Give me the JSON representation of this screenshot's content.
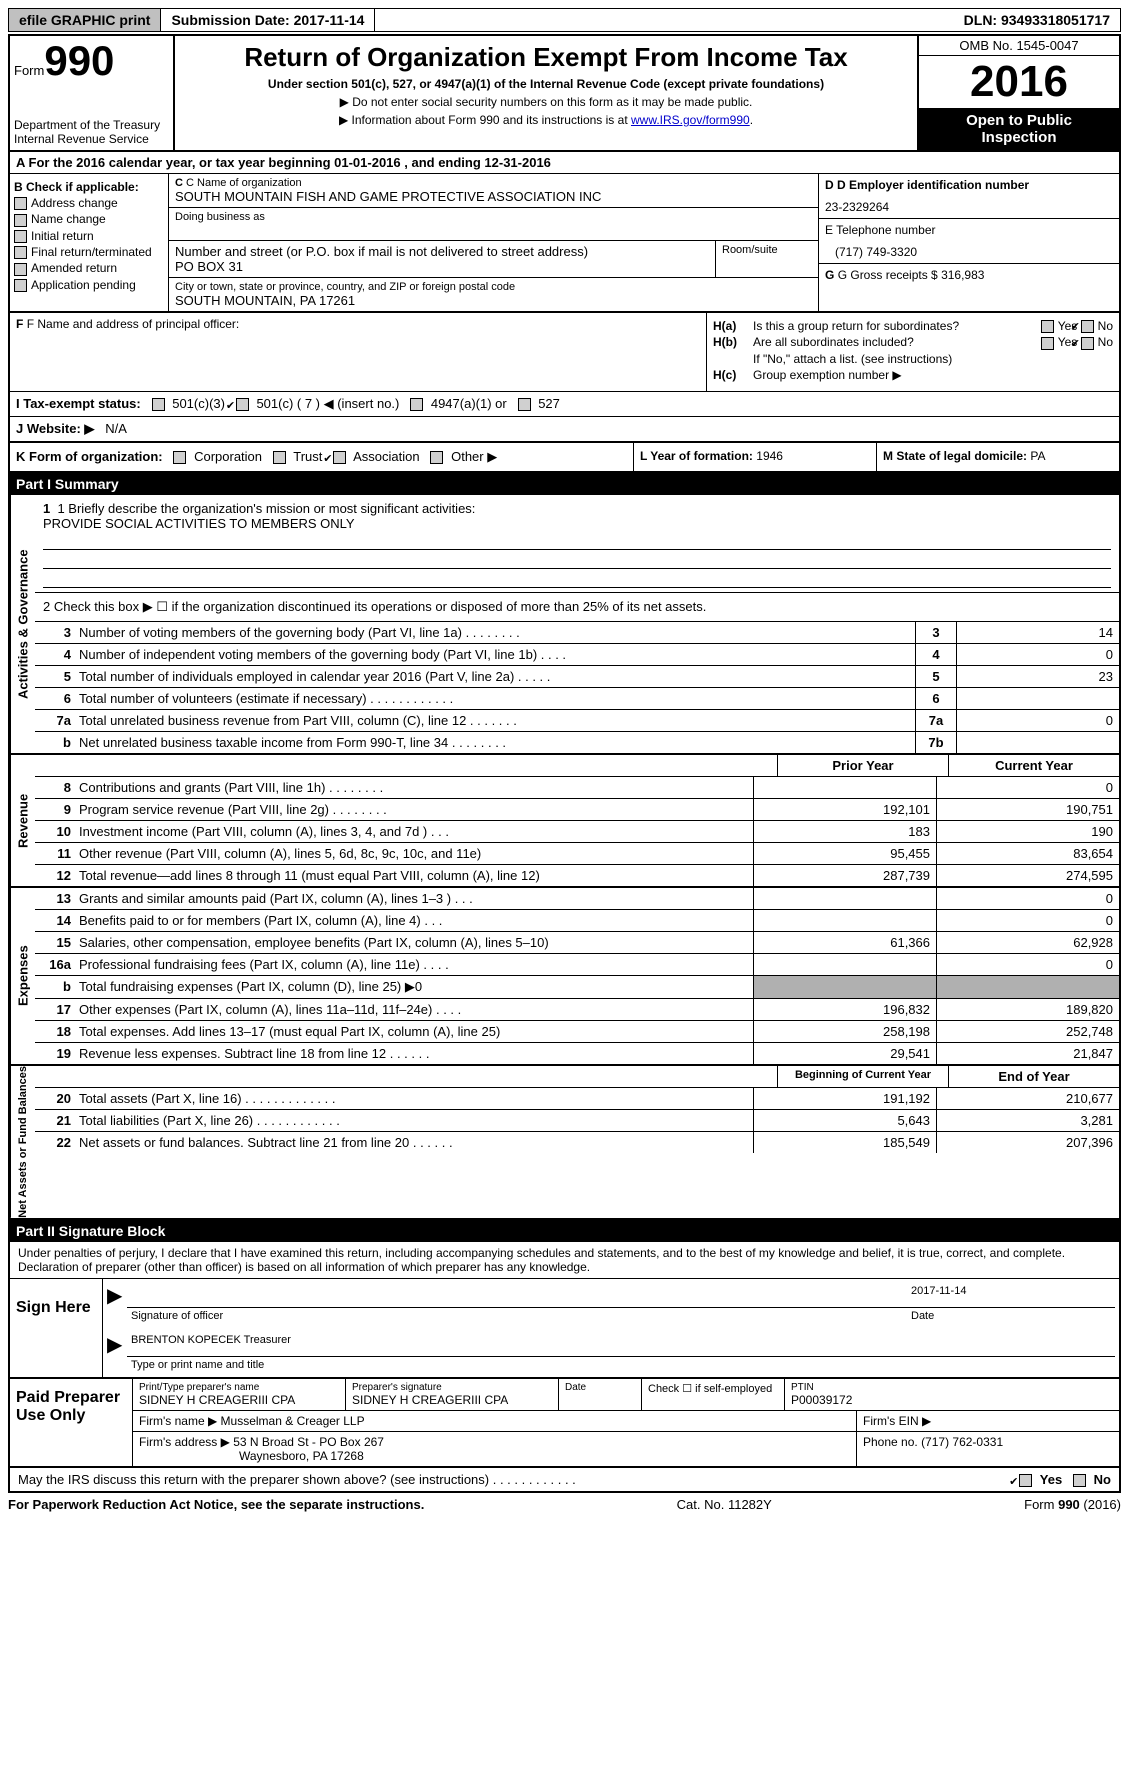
{
  "topbar": {
    "efile": "efile GRAPHIC print",
    "sub_label": "Submission Date: 2017-11-14",
    "dln": "DLN: 93493318051717"
  },
  "header": {
    "form_word": "Form",
    "form_num": "990",
    "dept1": "Department of the Treasury",
    "dept2": "Internal Revenue Service",
    "title": "Return of Organization Exempt From Income Tax",
    "subtitle": "Under section 501(c), 527, or 4947(a)(1) of the Internal Revenue Code (except private foundations)",
    "arrow1": "▶ Do not enter social security numbers on this form as it may be made public.",
    "arrow2_pre": "▶ Information about Form 990 and its instructions is at ",
    "arrow2_link": "www.IRS.gov/form990",
    "omb": "OMB No. 1545-0047",
    "year": "2016",
    "otp1": "Open to Public",
    "otp2": "Inspection"
  },
  "row_a": "A  For the 2016 calendar year, or tax year beginning 01-01-2016   , and ending 12-31-2016",
  "col_b": {
    "title": "B Check if applicable:",
    "opts": [
      "Address change",
      "Name change",
      "Initial return",
      "Final return/terminated",
      "Amended return",
      "Application pending"
    ]
  },
  "col_c": {
    "name_lbl": "C Name of organization",
    "name": "SOUTH MOUNTAIN FISH AND GAME PROTECTIVE ASSOCIATION INC",
    "dba_lbl": "Doing business as",
    "street_lbl": "Number and street (or P.O. box if mail is not delivered to street address)",
    "street": "PO BOX 31",
    "room_lbl": "Room/suite",
    "city_lbl": "City or town, state or province, country, and ZIP or foreign postal code",
    "city": "SOUTH MOUNTAIN, PA  17261"
  },
  "col_d": {
    "ein_lbl": "D Employer identification number",
    "ein": "23-2329264",
    "tel_lbl": "E Telephone number",
    "tel": "(717) 749-3320",
    "gross_lbl": "G Gross receipts $",
    "gross": "316,983"
  },
  "row_f": {
    "lbl": "F Name and address of principal officer:"
  },
  "row_h": {
    "ha_lbl": "H(a)",
    "ha_txt": "Is this a group return for subordinates?",
    "hb_lbl": "H(b)",
    "hb_txt": "Are all subordinates included?",
    "hb_note": "If \"No,\" attach a list. (see instructions)",
    "hc_lbl": "H(c)",
    "hc_txt": "Group exemption number ▶",
    "yes": "Yes",
    "no": "No"
  },
  "row_i": {
    "lbl": "I  Tax-exempt status:",
    "o1": "501(c)(3)",
    "o2": "501(c) ( 7 ) ◀ (insert no.)",
    "o3": "4947(a)(1) or",
    "o4": "527"
  },
  "row_j": {
    "lbl": "J  Website: ▶",
    "val": "N/A"
  },
  "row_k": {
    "lbl": "K Form of organization:",
    "o1": "Corporation",
    "o2": "Trust",
    "o3": "Association",
    "o4": "Other ▶"
  },
  "row_l": {
    "lbl": "L Year of formation:",
    "val": "1946"
  },
  "row_m": {
    "lbl": "M State of legal domicile:",
    "val": "PA"
  },
  "part1": {
    "header": "Part I    Summary",
    "vtab1": "Activities & Governance",
    "q1_lbl": "1  Briefly describe the organization's mission or most significant activities:",
    "q1_val": "PROVIDE SOCIAL ACTIVITIES TO MEMBERS ONLY",
    "q2": "2   Check this box ▶ ☐  if the organization discontinued its operations or disposed of more than 25% of its net assets.",
    "rows_gov": [
      {
        "n": "3",
        "t": "Number of voting members of the governing body (Part VI, line 1a)   .   .   .   .   .   .   .   .",
        "b": "3",
        "v": "14"
      },
      {
        "n": "4",
        "t": "Number of independent voting members of the governing body (Part VI, line 1b)   .   .   .   .",
        "b": "4",
        "v": "0"
      },
      {
        "n": "5",
        "t": "Total number of individuals employed in calendar year 2016 (Part V, line 2a)   .   .   .   .   .",
        "b": "5",
        "v": "23"
      },
      {
        "n": "6",
        "t": "Total number of volunteers (estimate if necessary)   .   .   .   .   .   .   .   .   .   .   .   .",
        "b": "6",
        "v": ""
      },
      {
        "n": "7a",
        "t": "Total unrelated business revenue from Part VIII, column (C), line 12   .   .   .   .   .   .   .",
        "b": "7a",
        "v": "0"
      },
      {
        "n": "b",
        "t": "Net unrelated business taxable income from Form 990-T, line 34   .   .   .   .   .   .   .   .",
        "b": "7b",
        "v": ""
      }
    ],
    "fin_header": {
      "c1": "Prior Year",
      "c2": "Current Year"
    },
    "vtab2": "Revenue",
    "rows_rev": [
      {
        "n": "8",
        "t": "Contributions and grants (Part VIII, line 1h)   .   .   .   .   .   .   .   .",
        "c1": "",
        "c2": "0"
      },
      {
        "n": "9",
        "t": "Program service revenue (Part VIII, line 2g)   .   .   .   .   .   .   .   .",
        "c1": "192,101",
        "c2": "190,751"
      },
      {
        "n": "10",
        "t": "Investment income (Part VIII, column (A), lines 3, 4, and 7d )   .   .   .",
        "c1": "183",
        "c2": "190"
      },
      {
        "n": "11",
        "t": "Other revenue (Part VIII, column (A), lines 5, 6d, 8c, 9c, 10c, and 11e)",
        "c1": "95,455",
        "c2": "83,654"
      },
      {
        "n": "12",
        "t": "Total revenue—add lines 8 through 11 (must equal Part VIII, column (A), line 12)",
        "c1": "287,739",
        "c2": "274,595"
      }
    ],
    "vtab3": "Expenses",
    "rows_exp": [
      {
        "n": "13",
        "t": "Grants and similar amounts paid (Part IX, column (A), lines 1–3 )   .   .   .",
        "c1": "",
        "c2": "0"
      },
      {
        "n": "14",
        "t": "Benefits paid to or for members (Part IX, column (A), line 4)   .   .   .",
        "c1": "",
        "c2": "0"
      },
      {
        "n": "15",
        "t": "Salaries, other compensation, employee benefits (Part IX, column (A), lines 5–10)",
        "c1": "61,366",
        "c2": "62,928"
      },
      {
        "n": "16a",
        "t": "Professional fundraising fees (Part IX, column (A), line 11e)   .   .   .   .",
        "c1": "",
        "c2": "0"
      },
      {
        "n": "b",
        "t": "Total fundraising expenses (Part IX, column (D), line 25) ▶0",
        "c1": "shaded",
        "c2": "shaded"
      },
      {
        "n": "17",
        "t": "Other expenses (Part IX, column (A), lines 11a–11d, 11f–24e)   .   .   .   .",
        "c1": "196,832",
        "c2": "189,820"
      },
      {
        "n": "18",
        "t": "Total expenses. Add lines 13–17 (must equal Part IX, column (A), line 25)",
        "c1": "258,198",
        "c2": "252,748"
      },
      {
        "n": "19",
        "t": "Revenue less expenses. Subtract line 18 from line 12   .   .   .   .   .   .",
        "c1": "29,541",
        "c2": "21,847"
      }
    ],
    "vtab4": "Net Assets or Fund Balances",
    "fin_header2": {
      "c1": "Beginning of Current Year",
      "c2": "End of Year"
    },
    "rows_net": [
      {
        "n": "20",
        "t": "Total assets (Part X, line 16)   .   .   .   .   .   .   .   .   .   .   .   .   .",
        "c1": "191,192",
        "c2": "210,677"
      },
      {
        "n": "21",
        "t": "Total liabilities (Part X, line 26)   .   .   .   .   .   .   .   .   .   .   .   .",
        "c1": "5,643",
        "c2": "3,281"
      },
      {
        "n": "22",
        "t": "Net assets or fund balances. Subtract line 21 from line 20 .   .   .   .   .   .",
        "c1": "185,549",
        "c2": "207,396"
      }
    ]
  },
  "part2": {
    "header": "Part II    Signature Block",
    "intro": "Under penalties of perjury, I declare that I have examined this return, including accompanying schedules and statements, and to the best of my knowledge and belief, it is true, correct, and complete. Declaration of preparer (other than officer) is based on all information of which preparer has any knowledge.",
    "sign_here": "Sign Here",
    "sig_date": "2017-11-14",
    "sig_line1": "Signature of officer",
    "sig_date_lbl": "Date",
    "officer": "BRENTON KOPECEK Treasurer",
    "sig_line2": "Type or print name and title",
    "paid": "Paid Preparer Use Only",
    "prep_name_lbl": "Print/Type preparer's name",
    "prep_name": "SIDNEY H CREAGERIII CPA",
    "prep_sig_lbl": "Preparer's signature",
    "prep_sig": "SIDNEY H CREAGERIII CPA",
    "prep_date_lbl": "Date",
    "self_emp": "Check ☐ if self-employed",
    "ptin_lbl": "PTIN",
    "ptin": "P00039172",
    "firm_name_lbl": "Firm's name      ▶",
    "firm_name": "Musselman & Creager LLP",
    "firm_ein_lbl": "Firm's EIN ▶",
    "firm_addr_lbl": "Firm's address ▶",
    "firm_addr1": "53 N Broad St - PO Box 267",
    "firm_addr2": "Waynesboro, PA  17268",
    "firm_phone_lbl": "Phone no.",
    "firm_phone": "(717) 762-0331"
  },
  "footer": {
    "discuss": "May the IRS discuss this return with the preparer shown above? (see instructions)   .   .   .   .   .   .   .   .   .   .   .   .",
    "yes": "Yes",
    "no": "No",
    "pra": "For Paperwork Reduction Act Notice, see the separate instructions.",
    "cat": "Cat. No. 11282Y",
    "form": "Form 990 (2016)"
  }
}
